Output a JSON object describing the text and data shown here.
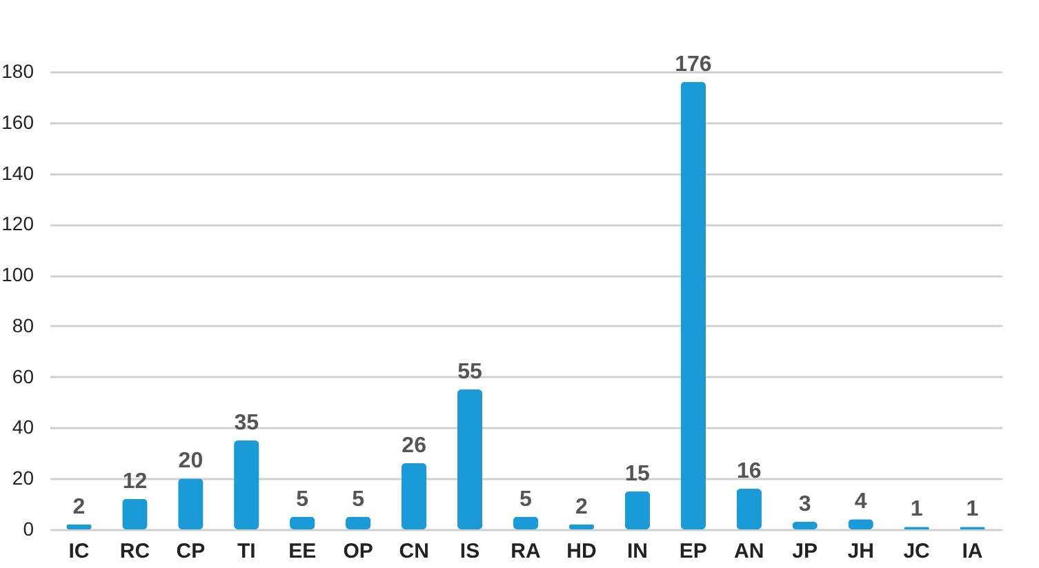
{
  "chart_data": {
    "type": "bar",
    "categories": [
      "IC",
      "RC",
      "CP",
      "TI",
      "EE",
      "OP",
      "CN",
      "IS",
      "RA",
      "HD",
      "IN",
      "EP",
      "AN",
      "JP",
      "JH",
      "JC",
      "IA"
    ],
    "values": [
      2,
      12,
      20,
      35,
      5,
      5,
      26,
      55,
      5,
      2,
      15,
      176,
      16,
      3,
      4,
      1,
      1
    ],
    "color": "#1a9bd7",
    "ylim": [
      0,
      180
    ],
    "yticks": [
      0,
      20,
      40,
      60,
      80,
      100,
      120,
      140,
      160,
      180
    ],
    "grid": "y",
    "data_labels": true
  }
}
